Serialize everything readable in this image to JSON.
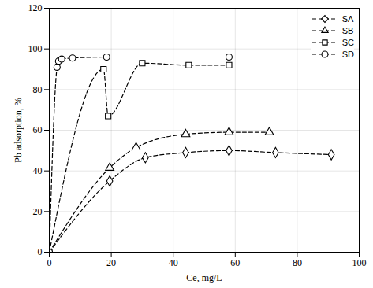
{
  "chart_data": {
    "type": "line",
    "x_label": "Ce, mg/L",
    "y_label": "Pb adsorption, %",
    "xlim": [
      0,
      100
    ],
    "xticks": [
      0,
      20,
      40,
      60,
      80,
      100
    ],
    "ylim": [
      0,
      120
    ],
    "yticks": [
      0,
      20,
      40,
      60,
      80,
      100,
      120
    ],
    "grid": true,
    "legend": "top-right",
    "series": [
      {
        "name": "SA",
        "color": "#000000",
        "marker": "diamond",
        "line_style": "dashed",
        "x": [
          0,
          19.5,
          31,
          44,
          58,
          73,
          91
        ],
        "values": [
          0,
          35,
          46.5,
          49,
          50,
          49,
          48
        ]
      },
      {
        "name": "SB",
        "color": "#000000",
        "marker": "triangle",
        "line_style": "dashed",
        "x": [
          0,
          19.5,
          28,
          44,
          58,
          71
        ],
        "values": [
          0,
          41.5,
          51.5,
          58,
          59,
          59
        ]
      },
      {
        "name": "SC",
        "color": "#000000",
        "marker": "square",
        "line_style": "dashed",
        "x": [
          0,
          17.5,
          19,
          30,
          45,
          58
        ],
        "values": [
          0,
          90,
          67,
          93,
          92,
          92
        ]
      },
      {
        "name": "SD",
        "color": "#000000",
        "marker": "circle",
        "line_style": "dashed",
        "x": [
          0,
          2.5,
          3,
          4,
          7.5,
          18.5,
          58
        ],
        "values": [
          0,
          91,
          94,
          95,
          95.5,
          96,
          96
        ]
      }
    ]
  }
}
